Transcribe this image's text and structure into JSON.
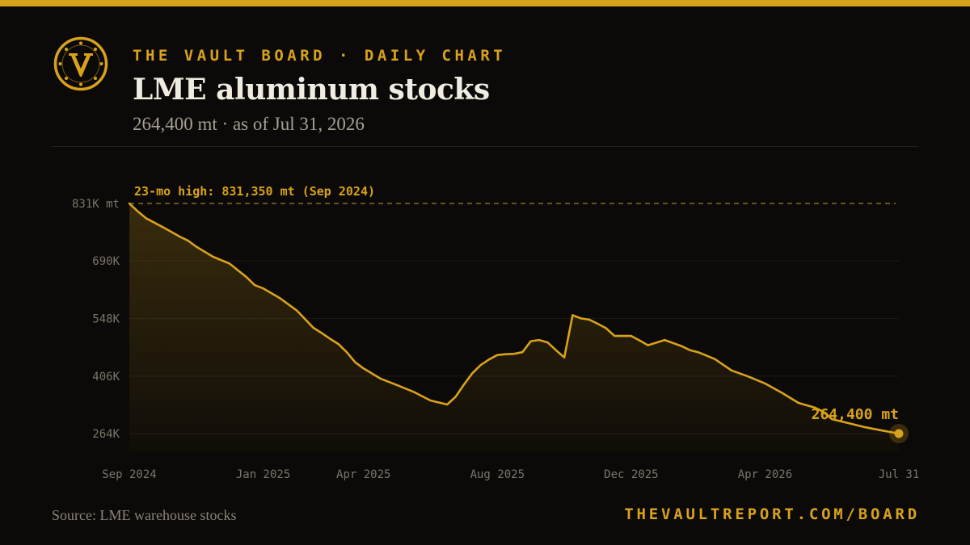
{
  "header": {
    "kicker": "THE VAULT BOARD · DAILY CHART",
    "title": "LME aluminum stocks",
    "subtitle": "264,400 mt · as of Jul 31, 2026",
    "logo_icon": "vault-v-logo-icon"
  },
  "footer": {
    "source": "Source: LME warehouse stocks",
    "site": "THEVAULTREPORT.COM/BOARD"
  },
  "colors": {
    "accent": "#d9a21c",
    "background": "#0c0a08",
    "title": "#f1ece2"
  },
  "chart_data": {
    "type": "area",
    "x_unit": "month",
    "ylim": [
      264400,
      831350
    ],
    "xlim": [
      0,
      23
    ],
    "y_ticks": [
      {
        "value": 831350,
        "label": "831K mt"
      },
      {
        "value": 690000,
        "label": "690K"
      },
      {
        "value": 548000,
        "label": "548K"
      },
      {
        "value": 406000,
        "label": "406K"
      },
      {
        "value": 264400,
        "label": "264K"
      }
    ],
    "x_ticks": [
      {
        "x": 0,
        "label": "Sep 2024"
      },
      {
        "x": 4,
        "label": "Jan 2025"
      },
      {
        "x": 7,
        "label": "Apr 2025"
      },
      {
        "x": 11,
        "label": "Aug 2025"
      },
      {
        "x": 15,
        "label": "Dec 2025"
      },
      {
        "x": 19,
        "label": "Apr 2026"
      },
      {
        "x": 23,
        "label": "Jul 31"
      }
    ],
    "reference_line": {
      "value": 831350,
      "label": "23-mo high: 831,350 mt (Sep 2024)"
    },
    "end_label": "264,400 mt",
    "grid": true,
    "series": [
      {
        "x": [
          0,
          0.25,
          0.5,
          1,
          1.5,
          1.75,
          2,
          2.5,
          3,
          3.5,
          3.75,
          4,
          4.5,
          5,
          5.5,
          5.75,
          6,
          6.25,
          6.5,
          6.75,
          7,
          7.5,
          8,
          8.5,
          9,
          9.5,
          9.75,
          10,
          10.25,
          10.5,
          10.75,
          11,
          11.25,
          11.5,
          11.75,
          12,
          12.25,
          12.5,
          12.75,
          13,
          13.25,
          13.5,
          13.75,
          14,
          14.25,
          14.5,
          14.75,
          15,
          15.25,
          15.5,
          16,
          16.5,
          16.75,
          17,
          17.5,
          18,
          18.5,
          19,
          19.5,
          20,
          20.5,
          20.75,
          21,
          21.5,
          22,
          22.5,
          23
        ],
        "values": [
          831350,
          812000,
          795000,
          773000,
          750000,
          740000,
          725000,
          700000,
          683000,
          650000,
          630000,
          622000,
          598000,
          568000,
          525000,
          512000,
          498000,
          485000,
          465000,
          440000,
          425000,
          400000,
          384000,
          367000,
          346000,
          336000,
          355000,
          385000,
          413000,
          433000,
          447000,
          458000,
          460000,
          461000,
          465000,
          492000,
          495000,
          489000,
          470000,
          452000,
          556000,
          548000,
          545000,
          535000,
          524000,
          505000,
          505000,
          505000,
          494000,
          482000,
          495000,
          480000,
          470000,
          465000,
          448000,
          420000,
          405000,
          388000,
          365000,
          340000,
          328000,
          318000,
          300000,
          290000,
          280000,
          272000,
          264400
        ]
      }
    ]
  }
}
